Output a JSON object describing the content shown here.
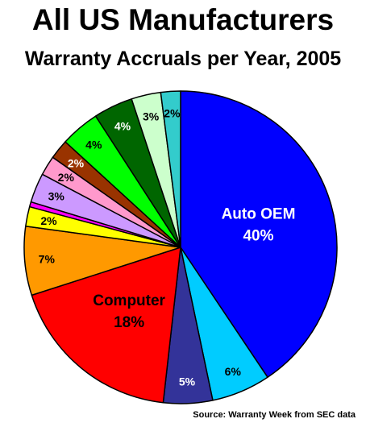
{
  "chart_data": {
    "type": "pie",
    "title": "All US Manufacturers",
    "subtitle": "Warranty Accruals per Year, 2005",
    "source": "Source: Warranty Week from SEC data",
    "slices": [
      {
        "label": "Auto OEM",
        "value": 40,
        "value_label": "40%",
        "color": "#0000ff",
        "label_color": "#ffffff"
      },
      {
        "label": "",
        "value": 6,
        "value_label": "6%",
        "color": "#00ccff",
        "label_color": "#000000"
      },
      {
        "label": "",
        "value": 5,
        "value_label": "5%",
        "color": "#333399",
        "label_color": "#ffffff"
      },
      {
        "label": "Computer",
        "value": 18,
        "value_label": "18%",
        "color": "#ff0000",
        "label_color": "#000000"
      },
      {
        "label": "",
        "value": 7,
        "value_label": "7%",
        "color": "#ff9900",
        "label_color": "#000000"
      },
      {
        "label": "",
        "value": 2,
        "value_label": "2%",
        "color": "#ffff00",
        "label_color": "#000000"
      },
      {
        "label": "",
        "value": 0.5,
        "value_label": "",
        "color": "#ff00ff",
        "label_color": "#000000"
      },
      {
        "label": "",
        "value": 3,
        "value_label": "3%",
        "color": "#cc99ff",
        "label_color": "#000000"
      },
      {
        "label": "",
        "value": 2,
        "value_label": "2%",
        "color": "#ff99cc",
        "label_color": "#000000"
      },
      {
        "label": "",
        "value": 2,
        "value_label": "2%",
        "color": "#993300",
        "label_color": "#ffffff"
      },
      {
        "label": "",
        "value": 4,
        "value_label": "4%",
        "color": "#00ff00",
        "label_color": "#000000"
      },
      {
        "label": "",
        "value": 4,
        "value_label": "4%",
        "color": "#006600",
        "label_color": "#ffffff"
      },
      {
        "label": "",
        "value": 3,
        "value_label": "3%",
        "color": "#ccffcc",
        "label_color": "#000000"
      },
      {
        "label": "",
        "value": 2,
        "value_label": "2%",
        "color": "#33cccc",
        "label_color": "#000000"
      }
    ],
    "legend": "none"
  }
}
